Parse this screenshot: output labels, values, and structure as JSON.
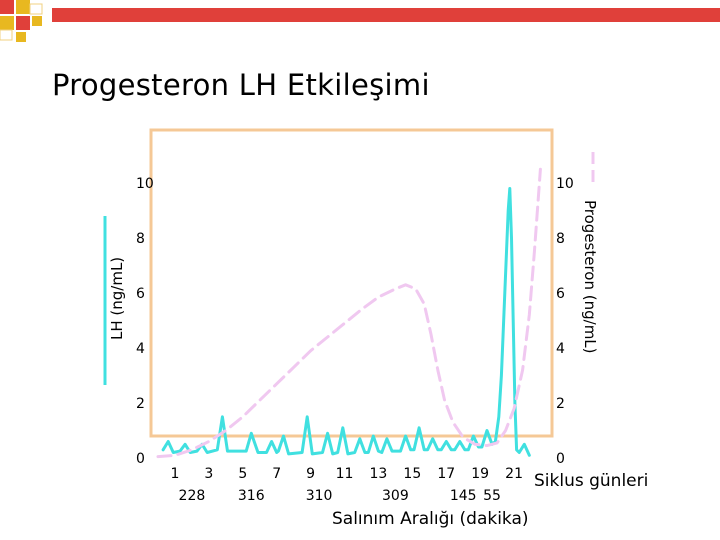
{
  "slide": {
    "title": "Progesteron LH Etkileşimi"
  },
  "colors": {
    "lh_line": "#40e0e0",
    "progesterone_line": "#f0c8f0",
    "plot_frame": "#f5c896",
    "deco_red": "#e0403a",
    "deco_yellow": "#e8b820"
  },
  "chart_data": {
    "type": "line",
    "title": "Progesteron LH Etkileşimi",
    "xlabel": "Siklus günleri",
    "xlabel2": "Salınım Aralığı (dakika)",
    "ylabel_left": "LH (ng/mL)",
    "ylabel_right": "Progesteron (ng/mL)",
    "x_ticks": [
      "1",
      "3",
      "5",
      "7",
      "9",
      "11",
      "13",
      "15",
      "17",
      "19",
      "21"
    ],
    "interval_labels": [
      {
        "near_day": 2,
        "text": "228"
      },
      {
        "near_day": 5.5,
        "text": "316"
      },
      {
        "near_day": 9.5,
        "text": "310"
      },
      {
        "near_day": 14,
        "text": "309"
      },
      {
        "near_day": 18,
        "text": "145"
      },
      {
        "near_day": 19.7,
        "text": "55"
      }
    ],
    "y_ticks_left": [
      "0",
      "2",
      "4",
      "6",
      "8",
      "10"
    ],
    "y_ticks_right": [
      "0",
      "2",
      "4",
      "6",
      "8",
      "10"
    ],
    "ylim_left": [
      0,
      10
    ],
    "ylim_right": [
      0,
      10
    ],
    "xlim": [
      0,
      23
    ],
    "series": [
      {
        "name": "LH (ng/mL)",
        "style": "solid",
        "points": [
          [
            0.3,
            0.3
          ],
          [
            0.6,
            0.6
          ],
          [
            0.9,
            0.2
          ],
          [
            1.3,
            0.25
          ],
          [
            1.6,
            0.5
          ],
          [
            1.9,
            0.2
          ],
          [
            2.3,
            0.25
          ],
          [
            2.6,
            0.5
          ],
          [
            2.9,
            0.2
          ],
          [
            3.5,
            0.3
          ],
          [
            3.8,
            1.5
          ],
          [
            4.1,
            0.25
          ],
          [
            5.2,
            0.25
          ],
          [
            5.5,
            0.9
          ],
          [
            5.9,
            0.2
          ],
          [
            6.4,
            0.2
          ],
          [
            6.7,
            0.6
          ],
          [
            7.0,
            0.2
          ],
          [
            7.1,
            0.25
          ],
          [
            7.4,
            0.8
          ],
          [
            7.7,
            0.15
          ],
          [
            8.5,
            0.2
          ],
          [
            8.8,
            1.5
          ],
          [
            9.1,
            0.15
          ],
          [
            9.7,
            0.2
          ],
          [
            10.0,
            0.9
          ],
          [
            10.3,
            0.15
          ],
          [
            10.6,
            0.2
          ],
          [
            10.9,
            1.1
          ],
          [
            11.2,
            0.15
          ],
          [
            11.6,
            0.2
          ],
          [
            11.9,
            0.7
          ],
          [
            12.2,
            0.2
          ],
          [
            12.4,
            0.2
          ],
          [
            12.7,
            0.8
          ],
          [
            13.0,
            0.25
          ],
          [
            13.2,
            0.2
          ],
          [
            13.5,
            0.7
          ],
          [
            13.8,
            0.25
          ],
          [
            14.3,
            0.25
          ],
          [
            14.6,
            0.8
          ],
          [
            14.9,
            0.3
          ],
          [
            15.1,
            0.3
          ],
          [
            15.4,
            1.1
          ],
          [
            15.7,
            0.3
          ],
          [
            15.9,
            0.3
          ],
          [
            16.2,
            0.7
          ],
          [
            16.5,
            0.3
          ],
          [
            16.7,
            0.3
          ],
          [
            17.0,
            0.6
          ],
          [
            17.3,
            0.3
          ],
          [
            17.5,
            0.3
          ],
          [
            17.8,
            0.6
          ],
          [
            18.1,
            0.3
          ],
          [
            18.3,
            0.3
          ],
          [
            18.6,
            0.8
          ],
          [
            18.9,
            0.4
          ],
          [
            19.1,
            0.4
          ],
          [
            19.4,
            1.0
          ],
          [
            19.7,
            0.5
          ],
          [
            19.9,
            0.6
          ],
          [
            20.1,
            1.5
          ],
          [
            20.25,
            3.0
          ],
          [
            20.35,
            4.5
          ],
          [
            20.45,
            6.0
          ],
          [
            20.55,
            7.5
          ],
          [
            20.65,
            9.0
          ],
          [
            20.75,
            9.8
          ],
          [
            20.85,
            8.0
          ],
          [
            20.95,
            5.0
          ],
          [
            21.05,
            2.0
          ],
          [
            21.15,
            0.3
          ],
          [
            21.3,
            0.2
          ],
          [
            21.6,
            0.5
          ],
          [
            21.9,
            0.1
          ]
        ]
      },
      {
        "name": "Progesteron (ng/mL)",
        "style": "dashed",
        "points": [
          [
            0.0,
            0.05
          ],
          [
            1.0,
            0.1
          ],
          [
            2.0,
            0.3
          ],
          [
            3.0,
            0.6
          ],
          [
            4.0,
            1.0
          ],
          [
            5.0,
            1.5
          ],
          [
            6.0,
            2.1
          ],
          [
            7.0,
            2.7
          ],
          [
            8.0,
            3.3
          ],
          [
            9.0,
            3.9
          ],
          [
            10.0,
            4.4
          ],
          [
            11.0,
            4.9
          ],
          [
            12.0,
            5.4
          ],
          [
            13.0,
            5.85
          ],
          [
            14.0,
            6.15
          ],
          [
            14.6,
            6.3
          ],
          [
            15.2,
            6.15
          ],
          [
            15.7,
            5.6
          ],
          [
            16.1,
            4.5
          ],
          [
            16.5,
            3.2
          ],
          [
            16.9,
            2.1
          ],
          [
            17.4,
            1.3
          ],
          [
            18.0,
            0.75
          ],
          [
            18.7,
            0.5
          ],
          [
            19.4,
            0.45
          ],
          [
            20.0,
            0.55
          ],
          [
            20.5,
            1.0
          ],
          [
            21.0,
            1.8
          ],
          [
            21.5,
            3.2
          ],
          [
            21.9,
            5.2
          ],
          [
            22.2,
            7.5
          ],
          [
            22.4,
            9.2
          ],
          [
            22.55,
            10.5
          ]
        ]
      }
    ]
  }
}
